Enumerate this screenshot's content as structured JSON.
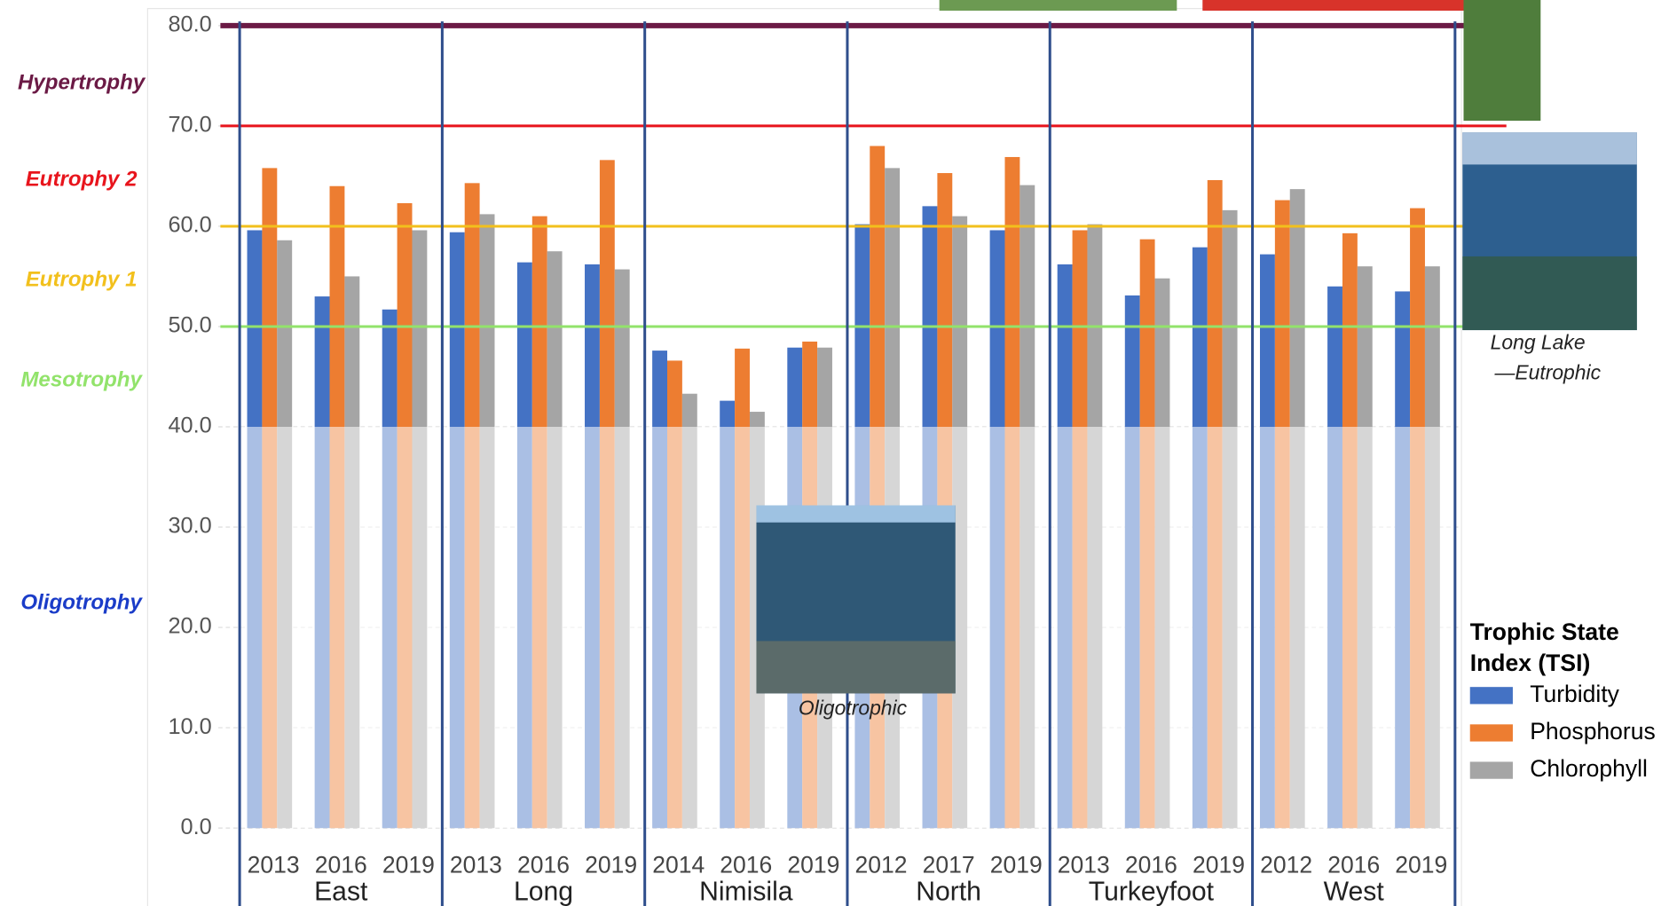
{
  "chart_data": {
    "type": "bar",
    "categories": [
      "2013",
      "2016",
      "2019",
      "2013",
      "2016",
      "2019",
      "2014",
      "2016",
      "2019",
      "2012",
      "2017",
      "2019",
      "2013",
      "2016",
      "2019",
      "2012",
      "2016",
      "2019"
    ],
    "groups": [
      "East",
      "Long",
      "Nimisila",
      "North",
      "Turkeyfoot",
      "West"
    ],
    "series": [
      {
        "name": "Turbidity",
        "color": "#4472c4",
        "values": [
          59.6,
          53.0,
          51.7,
          59.4,
          56.4,
          56.2,
          47.6,
          42.6,
          47.9,
          60.2,
          62.0,
          59.6,
          56.2,
          53.1,
          57.9,
          57.2,
          54.0,
          53.5
        ]
      },
      {
        "name": "Phosphorus",
        "color": "#ed7d31",
        "values": [
          65.8,
          64.0,
          62.3,
          64.3,
          61.0,
          66.6,
          46.6,
          47.8,
          48.5,
          68.0,
          65.3,
          66.9,
          59.6,
          58.7,
          64.6,
          62.6,
          59.3,
          61.8
        ]
      },
      {
        "name": "Chlorophyll",
        "color": "#a5a5a5",
        "values": [
          58.6,
          55.0,
          59.6,
          61.2,
          57.5,
          55.7,
          43.3,
          41.5,
          47.9,
          65.8,
          61.0,
          64.1,
          60.2,
          54.8,
          61.6,
          63.7,
          56.0,
          56.0
        ]
      }
    ],
    "ylim": [
      0,
      80
    ],
    "yticks": [
      {
        "value": 0,
        "label": "0.0"
      },
      {
        "value": 10,
        "label": "10.0"
      },
      {
        "value": 20,
        "label": "20.0"
      },
      {
        "value": 30,
        "label": "30.0"
      },
      {
        "value": 40,
        "label": "40.0"
      },
      {
        "value": 50,
        "label": "50.0"
      },
      {
        "value": 60,
        "label": "60.0"
      },
      {
        "value": 70,
        "label": "70.0"
      },
      {
        "value": 80,
        "label": "80.0"
      }
    ],
    "grid": true,
    "faded_below": 40,
    "thresholds": [
      {
        "name": "Hypertrophy",
        "value": 80,
        "color": "#6b1a45"
      },
      {
        "name": "Eutrophy 2",
        "value": 70,
        "color": "#e8141c"
      },
      {
        "name": "Eutrophy 1",
        "value": 60,
        "color": "#f2c01c"
      },
      {
        "name": "Mesotrophy",
        "value": 50,
        "color": "#92e36b"
      },
      {
        "name": "Oligotrophy",
        "value": 40,
        "color": "#1a3cc8"
      }
    ],
    "legend_title": "Trophic State Index (TSI)",
    "legend": "right",
    "captions": [
      "Long Lake \n—Eutrophic",
      "Oligotrophic"
    ]
  }
}
